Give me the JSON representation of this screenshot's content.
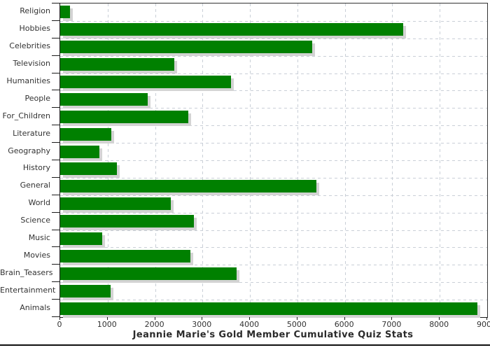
{
  "chart_data": {
    "type": "bar",
    "orientation": "horizontal",
    "title": "Jeannie Marie's Gold Member Cumulative Quiz Stats",
    "categories": [
      "Religion",
      "Hobbies",
      "Celebrities",
      "Television",
      "Humanities",
      "People",
      "For_Children",
      "Literature",
      "Geography",
      "History",
      "General",
      "World",
      "Science",
      "Music",
      "Movies",
      "Brain_Teasers",
      "Entertainment",
      "Animals"
    ],
    "values": [
      200,
      7225,
      5310,
      2410,
      3600,
      1840,
      2705,
      1080,
      825,
      1190,
      5400,
      2325,
      2810,
      880,
      2750,
      3720,
      1060,
      8790
    ],
    "xlabel": "",
    "ylabel": "",
    "xlim": [
      0,
      9000
    ],
    "x_tick_step": 1000,
    "x_tick_labels": [
      "0",
      "1000",
      "2000",
      "3000",
      "4000",
      "5000",
      "6000",
      "7000",
      "8000",
      "9000"
    ],
    "grid": "dashed-both-axes",
    "legend": "none",
    "colors": {
      "bar": "#008000",
      "bar_shadow": "#d3d3d3",
      "gridline": "#c9cfd7",
      "axis": "#1a1a1a",
      "plot_border": "#333333",
      "text": "#333333",
      "background": "#ffffff",
      "bottom_rule": "#101010"
    }
  }
}
